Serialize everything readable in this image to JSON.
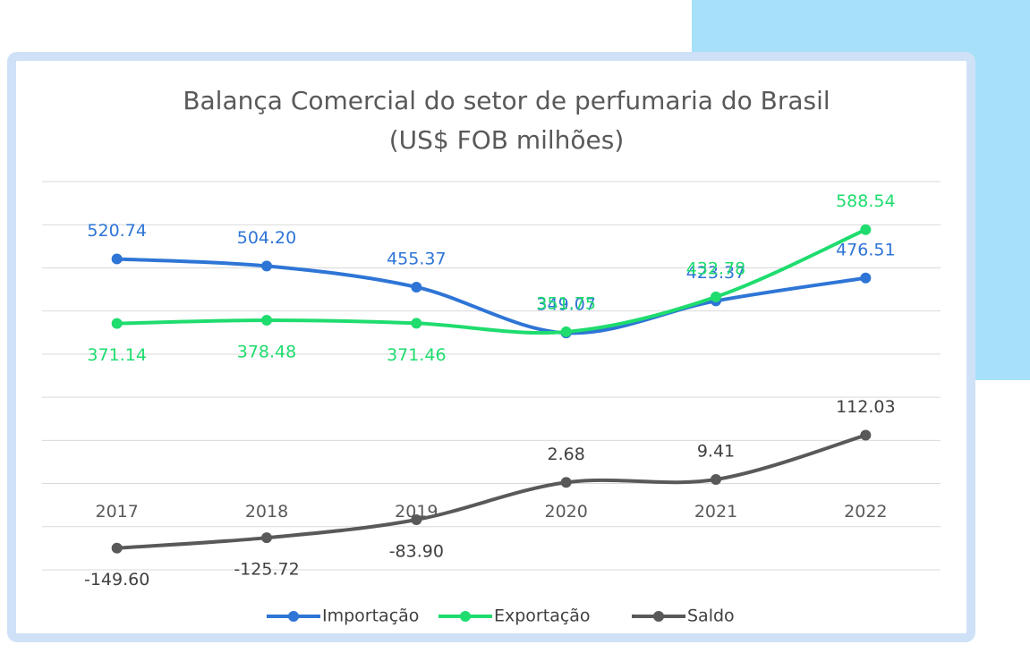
{
  "chart_data": {
    "type": "line",
    "title": "Balança Comercial do setor de perfumaria do Brasil",
    "subtitle": "(US$ FOB milhões)",
    "categories": [
      "2017",
      "2018",
      "2019",
      "2020",
      "2021",
      "2022"
    ],
    "series": [
      {
        "name": "Importação",
        "color": "#2e75d6",
        "values": [
          520.74,
          504.2,
          455.37,
          349.07,
          423.37,
          476.51
        ],
        "value_labels": [
          "520.74",
          "504.20",
          "455.37",
          "349.07",
          "423.37",
          "476.51"
        ]
      },
      {
        "name": "Exportação",
        "color": "#1fdc6e",
        "values": [
          371.14,
          378.48,
          371.46,
          351.75,
          432.78,
          588.54
        ],
        "value_labels": [
          "371.14",
          "378.48",
          "371.46",
          "351.75",
          "432.78",
          "588.54"
        ]
      },
      {
        "name": "Saldo",
        "color": "#595959",
        "values": [
          -149.6,
          -125.72,
          -83.9,
          2.68,
          9.41,
          112.03
        ],
        "value_labels": [
          "-149.60",
          "-125.72",
          "-83.90",
          "2.68",
          "9.41",
          "112.03"
        ]
      }
    ],
    "ylim": [
      -200,
      700
    ],
    "yticks": [
      -200,
      -100,
      0,
      100,
      200,
      300,
      400,
      500,
      600,
      700
    ],
    "grid": true,
    "legend": "bottom"
  }
}
